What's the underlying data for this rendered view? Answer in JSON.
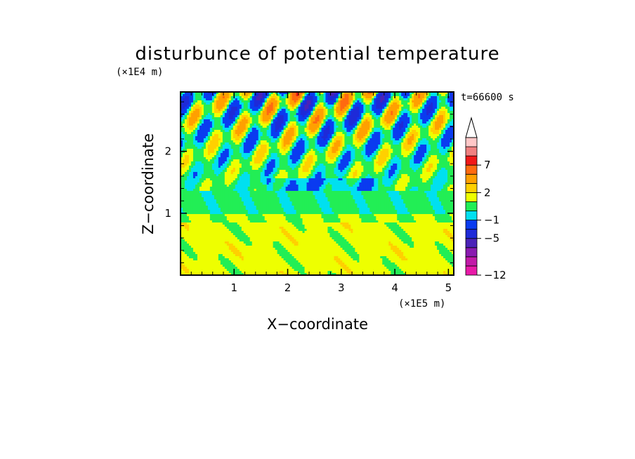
{
  "chart_data": {
    "type": "heatmap",
    "title": "disturbunce of potential temperature",
    "xlabel": "X−coordinate",
    "ylabel": "Z−coordinate",
    "x_unit": "(×1E5 m)",
    "y_unit": "(×1E4 m)",
    "time_label": "t=66600 s",
    "xlim": [
      0,
      5.1
    ],
    "ylim": [
      0,
      2.96
    ],
    "x_ticks": [
      1,
      2,
      3,
      4,
      5
    ],
    "y_ticks": [
      1,
      2
    ],
    "colorbar": {
      "levels": [
        -12,
        -11,
        -9,
        -7,
        -5,
        -3,
        -1,
        0,
        1,
        2,
        3,
        5,
        7,
        9,
        11
      ],
      "tick_labels": [
        "−12",
        "−5",
        "−1",
        "2",
        "7"
      ],
      "colors": [
        "#e81aa8",
        "#c21aa8",
        "#8a1ab0",
        "#4a22b8",
        "#1e2ad8",
        "#0a3bf0",
        "#00e0f0",
        "#22ee55",
        "#eeff00",
        "#ffd000",
        "#ffa000",
        "#ff6a10",
        "#f01818",
        "#f08080",
        "#ffc8c8"
      ],
      "extend": "max"
    },
    "description_fields": {
      "pattern": "upper troposphere wavy anomalies; mid-level green band; lower yellow/orange band"
    }
  }
}
